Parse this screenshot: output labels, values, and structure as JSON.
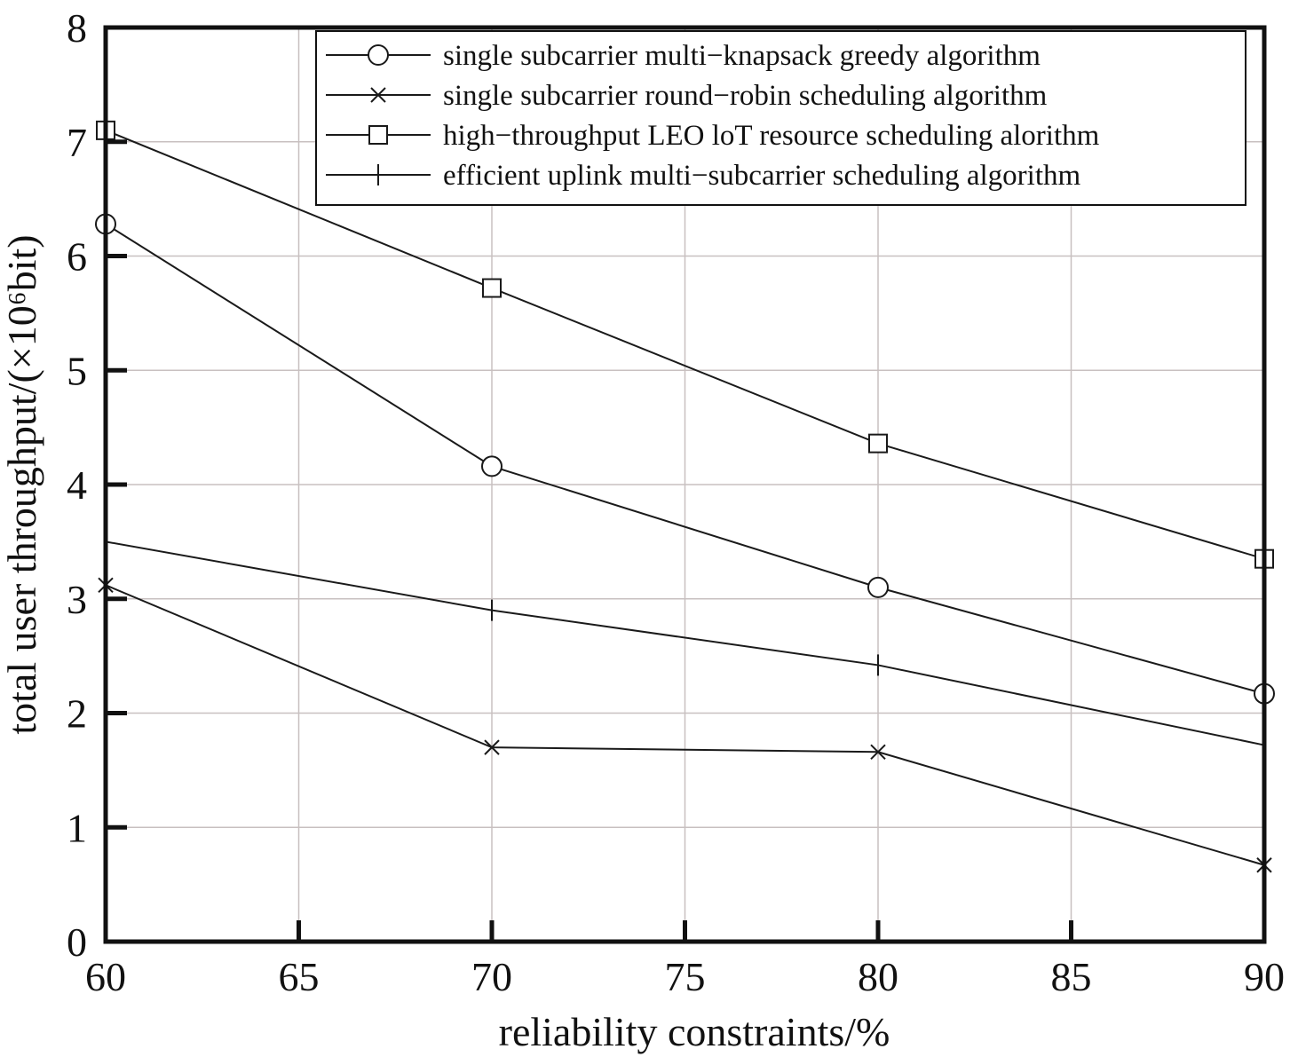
{
  "chart_data": {
    "type": "line",
    "xlabel": "reliability constraints/%",
    "ylabel": "total user throughput/(×10⁶bit)",
    "xlim": [
      60,
      90
    ],
    "ylim": [
      0,
      8
    ],
    "xticks": [
      60,
      65,
      70,
      75,
      80,
      85,
      90
    ],
    "yticks": [
      0,
      1,
      2,
      3,
      4,
      5,
      6,
      7,
      8
    ],
    "grid": true,
    "legend_position": "top-right",
    "series": [
      {
        "name": "single subcarrier multi−knapsack greedy algorithm",
        "marker": "circle",
        "x": [
          60,
          70,
          80,
          90
        ],
        "y": [
          6.28,
          4.16,
          3.1,
          2.17
        ]
      },
      {
        "name": "single subcarrier round−robin scheduling algorithm",
        "marker": "x",
        "x": [
          60,
          70,
          80,
          90
        ],
        "y": [
          3.12,
          1.7,
          1.66,
          0.67
        ]
      },
      {
        "name": "high−throughput LEO loT resource scheduling alorithm",
        "marker": "square",
        "x": [
          60,
          70,
          80,
          90
        ],
        "y": [
          7.1,
          5.72,
          4.36,
          3.35
        ]
      },
      {
        "name": "efficient uplink multi−subcarrier scheduling algorithm",
        "marker": "plus",
        "x": [
          60,
          70,
          80,
          90
        ],
        "y": [
          3.5,
          2.9,
          2.42,
          1.72
        ]
      }
    ]
  }
}
